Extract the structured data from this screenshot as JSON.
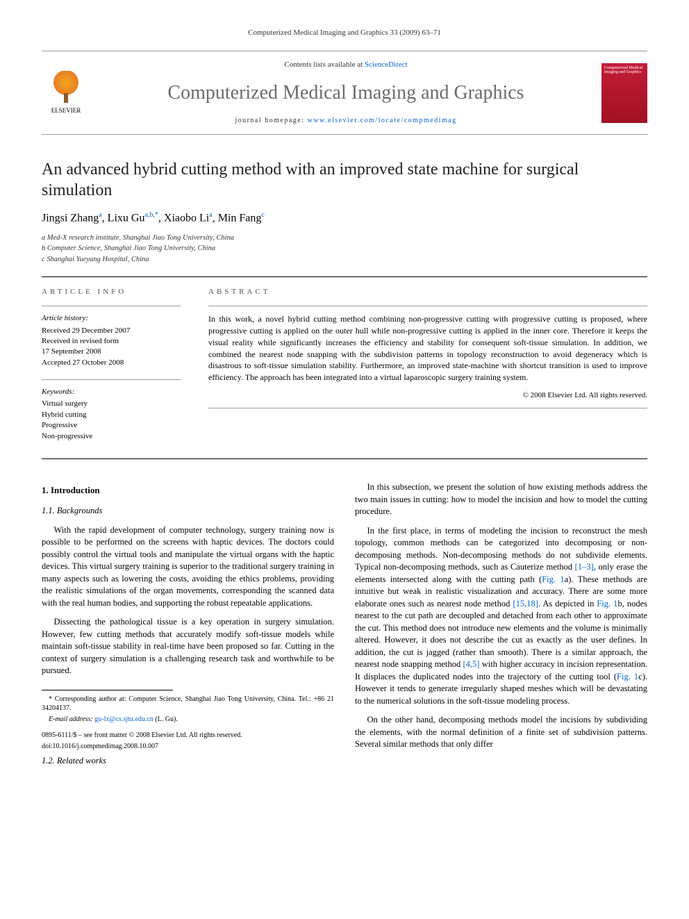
{
  "running_header": "Computerized Medical Imaging and Graphics 33 (2009) 63–71",
  "banner": {
    "contents_prefix": "Contents lists available at ",
    "contents_link": "ScienceDirect",
    "journal_name": "Computerized Medical Imaging and Graphics",
    "homepage_prefix": "journal homepage: ",
    "homepage_url": "www.elsevier.com/locate/compmedimag",
    "publisher": "ELSEVIER",
    "cover_text": "Computerized Medical Imaging and Graphics"
  },
  "title": "An advanced hybrid cutting method with an improved state machine for surgical simulation",
  "authors_html": "Jingsi Zhang<sup>a</sup>, Lixu Gu<sup>a,b,*</sup>, Xiaobo Li<sup>a</sup>, Min Fang<sup>c</sup>",
  "affiliations": [
    "a Med-X research institute, Shanghai Jiao Tong University, China",
    "b Computer Science, Shanghai Jiao Tong University, China",
    "c Shanghai Yueyang Hospital, China"
  ],
  "info": {
    "heading": "ARTICLE INFO",
    "history_label": "Article history:",
    "history": [
      "Received 29 December 2007",
      "Received in revised form",
      "17 September 2008",
      "Accepted 27 October 2008"
    ],
    "keywords_label": "Keywords:",
    "keywords": [
      "Virtual surgery",
      "Hybrid cutting",
      "Progressive",
      "Non-progressive"
    ]
  },
  "abstract": {
    "heading": "ABSTRACT",
    "text": "In this work, a novel hybrid cutting method combining non-progressive cutting with progressive cutting is proposed, where progressive cutting is applied on the outer hull while non-progressive cutting is applied in the inner core. Therefore it keeps the visual reality while significantly increases the efficiency and stability for consequent soft-tissue simulation. In addition, we combined the nearest node snapping with the subdivision patterns in topology reconstruction to avoid degeneracy which is disastrous to soft-tissue simulation stability. Furthermore, an improved state-machine with shortcut transition is used to improve efficiency. The approach has been integrated into a virtual laparoscopic surgery training system.",
    "copyright": "© 2008 Elsevier Ltd. All rights reserved."
  },
  "sections": {
    "s1": "1. Introduction",
    "s11": "1.1. Backgrounds",
    "p11a": "With the rapid development of computer technology, surgery training now is possible to be performed on the screens with haptic devices. The doctors could possibly control the virtual tools and manipulate the virtual organs with the haptic devices. This virtual surgery training is superior to the traditional surgery training in many aspects such as lowering the costs, avoiding the ethics problems, providing the realistic simulations of the organ movements, corresponding the scanned data with the real human bodies, and supporting the robust repeatable applications.",
    "p11b": "Dissecting the pathological tissue is a key operation in surgery simulation. However, few cutting methods that accurately modify soft-tissue models while maintain soft-tissue stability in real-time have been proposed so far. Cutting in the context of surgery simulation is a challenging research task and worthwhile to be pursued.",
    "s12": "1.2. Related works",
    "p12a": "In this subsection, we present the solution of how existing methods address the two main issues in cutting: how to model the incision and how to model the cutting procedure.",
    "p12b_pre": "In the first place, in terms of modeling the incision to reconstruct the mesh topology, common methods can be categorized into decomposing or non-decomposing methods. Non-decomposing methods do not subdivide elements. Typical non-decomposing methods, such as Cauterize method ",
    "ref13": "[1–3]",
    "p12b_mid1": ", only erase the elements intersected along with the cutting path (",
    "fig1a": "Fig. 1",
    "p12b_mid2": "a). These methods are intuitive but weak in realistic visualization and accuracy. There are some more elaborate ones such as nearest node method ",
    "ref1518": "[15,18]",
    "p12b_mid3": ". As depicted in ",
    "fig1b": "Fig. 1",
    "p12b_mid4": "b, nodes nearest to the cut path are decoupled and detached from each other to approximate the cut. This method does not introduce new elements and the volume is minimally altered. However, it does not describe the cut as exactly as the user defines. In addition, the cut is jagged (rather than smooth). There is a similar approach, the nearest node snapping method ",
    "ref45": "[4,5]",
    "p12b_mid5": " with higher accuracy in incision representation. It displaces the duplicated nodes into the trajectory of the cutting tool (",
    "fig1c": "Fig. 1",
    "p12b_end": "c). However it tends to generate irregularly shaped meshes which will be devastating to the numerical solutions in the soft-tissue modeling process.",
    "p12c": "On the other hand, decomposing methods model the incisions by subdividing the elements, with the normal definition of a finite set of subdivision patterns. Several similar methods that only differ"
  },
  "footnotes": {
    "corr": "* Corresponding author at: Computer Science, Shanghai Jiao Tong University, China. Tel.: +86 21 34204137.",
    "email_label": "E-mail address: ",
    "email": "gu-lx@cs.sjtu.edu.cn",
    "email_suffix": " (L. Gu).",
    "issn": "0895-6111/$ – see front matter © 2008 Elsevier Ltd. All rights reserved.",
    "doi": "doi:10.1016/j.compmedimag.2008.10.007"
  },
  "colors": {
    "link": "#0066cc",
    "journal_grey": "#6b6b6b",
    "cover_red": "#c41e3a"
  }
}
